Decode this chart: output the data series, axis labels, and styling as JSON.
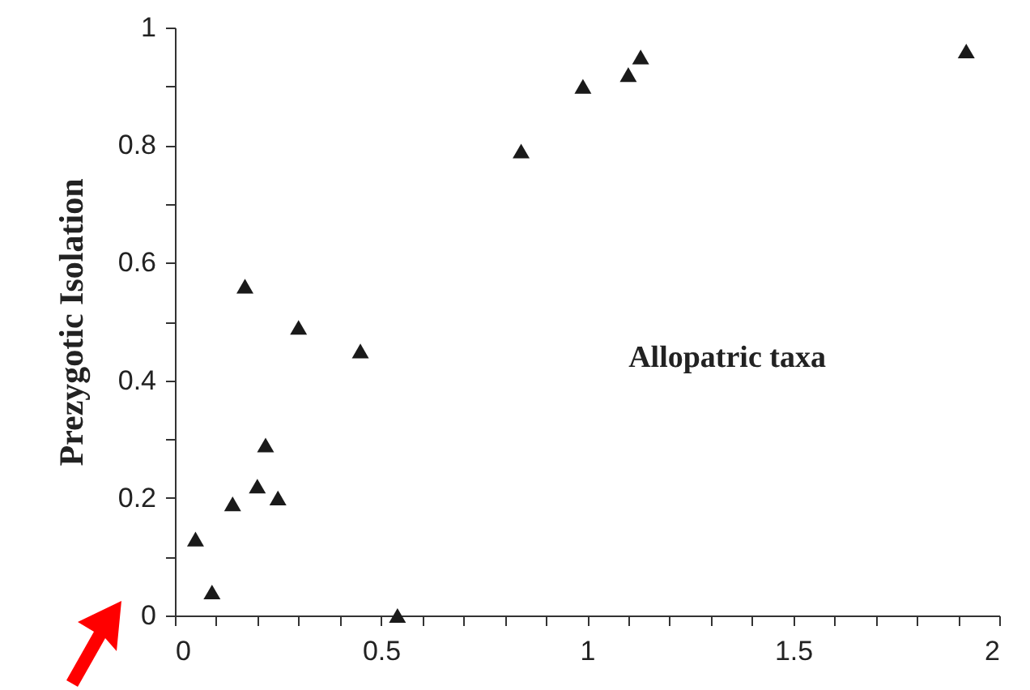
{
  "chart_data": {
    "type": "scatter",
    "ylabel": "Prezygotic Isolation",
    "annotations": [
      "Allopatric taxa"
    ],
    "marker": "triangle",
    "grid": false,
    "xlim": [
      0,
      2
    ],
    "ylim": [
      0,
      1
    ],
    "xticks": [
      0,
      {
        "value": 0.1,
        "label": null
      },
      {
        "value": 0.2,
        "label": null
      },
      {
        "value": 0.3,
        "label": null
      },
      {
        "value": 0.4,
        "label": null
      },
      0.5,
      {
        "value": 0.6,
        "label": null
      },
      {
        "value": 0.7,
        "label": null
      },
      {
        "value": 0.8,
        "label": null
      },
      {
        "value": 0.9,
        "label": null
      },
      1,
      {
        "value": 1.1,
        "label": null
      },
      {
        "value": 1.2,
        "label": null
      },
      {
        "value": 1.3,
        "label": null
      },
      {
        "value": 1.4,
        "label": null
      },
      1.5,
      {
        "value": 1.6,
        "label": null
      },
      {
        "value": 1.7,
        "label": null
      },
      {
        "value": 1.8,
        "label": null
      },
      {
        "value": 1.9,
        "label": null
      },
      2
    ],
    "yticks": [
      0,
      {
        "value": 0.1,
        "label": null
      },
      0.2,
      {
        "value": 0.3,
        "label": null
      },
      0.4,
      {
        "value": 0.5,
        "label": null
      },
      0.6,
      {
        "value": 0.7,
        "label": null
      },
      0.8,
      {
        "value": 0.9,
        "label": null
      },
      1
    ],
    "series": [
      {
        "color": "#1a1a1a",
        "x": [
          0.05,
          0.09,
          0.14,
          0.17,
          0.2,
          0.22,
          0.25,
          0.3,
          0.45,
          0.54,
          0.84,
          0.99,
          1.1,
          1.13,
          1.92
        ],
        "values": [
          0.13,
          0.04,
          0.19,
          0.56,
          0.22,
          0.29,
          0.2,
          0.49,
          0.45,
          0,
          0.79,
          0.9,
          0.92,
          0.95,
          0.96
        ]
      }
    ]
  }
}
